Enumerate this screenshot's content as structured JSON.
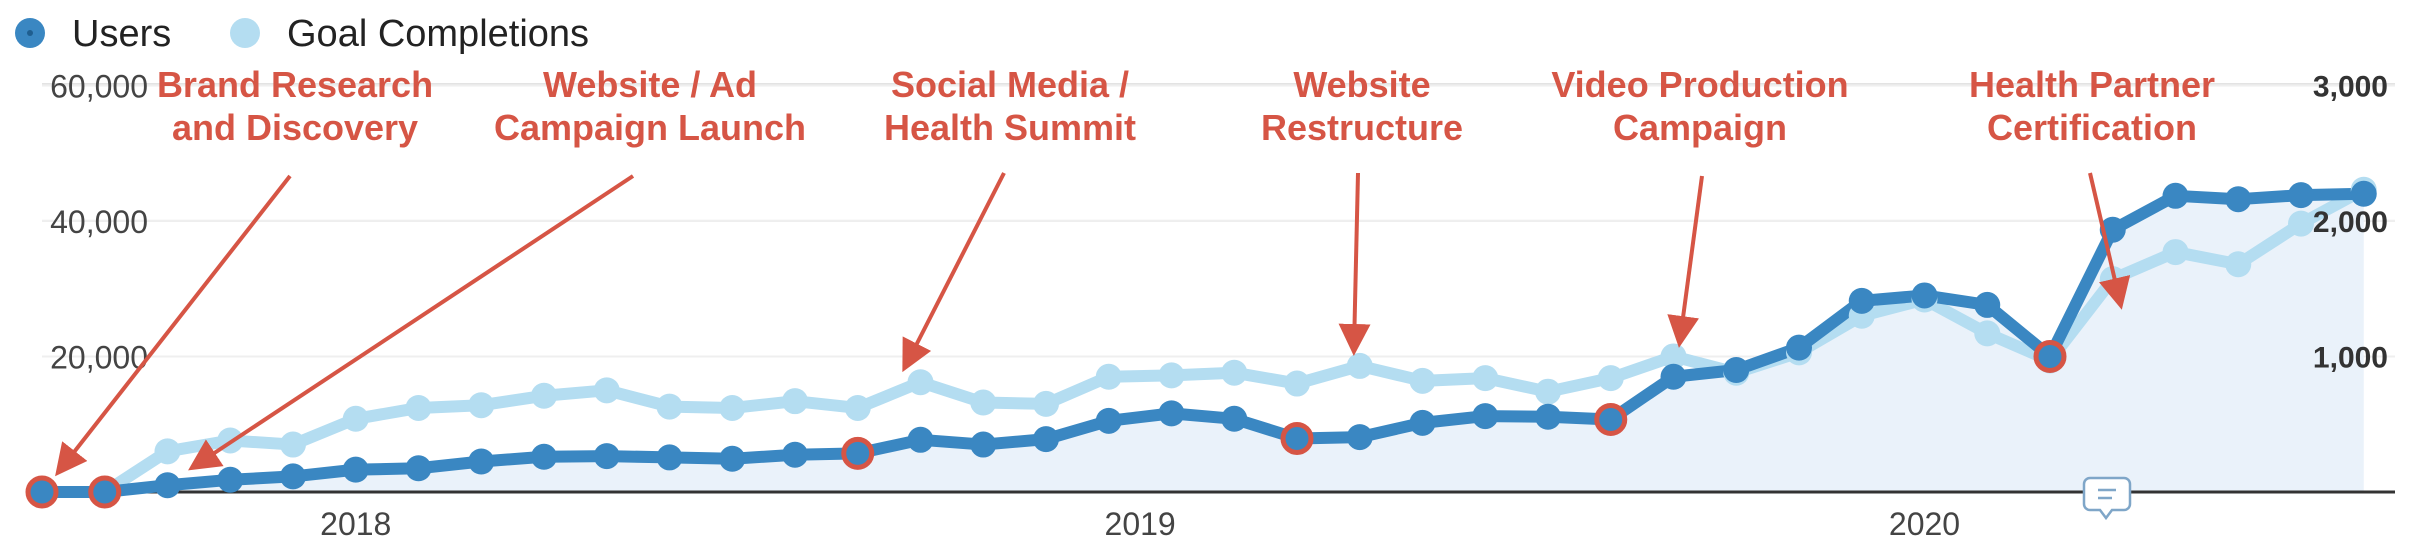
{
  "chart_data": {
    "type": "line",
    "legend": [
      {
        "name": "Users",
        "color": "#3a87c2"
      },
      {
        "name": "Goal Completions",
        "color": "#b4ddf1"
      }
    ],
    "y_left": {
      "ticks": [
        20000,
        40000,
        60000
      ],
      "tick_labels": [
        "20,000",
        "40,000",
        "60,000"
      ],
      "ylim": [
        0,
        63000
      ]
    },
    "y_right": {
      "ticks": [
        1000,
        2000,
        3000
      ],
      "tick_labels": [
        "1,000",
        "2,000",
        "3,000"
      ],
      "ylim": [
        0,
        3150
      ]
    },
    "x_tick_labels": [
      {
        "label": "2018",
        "index": 5
      },
      {
        "label": "2019",
        "index": 17.5
      },
      {
        "label": "2020",
        "index": 30
      }
    ],
    "point_count": 38,
    "series": [
      {
        "name": "Users",
        "axis": "left",
        "color": "#3a87c2",
        "values": [
          0,
          0,
          1000,
          1800,
          2300,
          3300,
          3500,
          4500,
          5200,
          5300,
          5100,
          4900,
          5500,
          5700,
          7700,
          7000,
          7800,
          10500,
          11600,
          10800,
          7900,
          8100,
          10200,
          11200,
          11100,
          10700,
          17000,
          18000,
          21300,
          28200,
          29000,
          27600,
          20000,
          38700,
          43700,
          43200,
          43800,
          44000
        ]
      },
      {
        "name": "Goal Completions",
        "axis": "right",
        "color": "#b4ddf1",
        "values": [
          0,
          0,
          300,
          380,
          350,
          540,
          620,
          640,
          710,
          750,
          630,
          620,
          670,
          620,
          810,
          660,
          650,
          850,
          860,
          880,
          800,
          930,
          820,
          840,
          740,
          840,
          1000,
          880,
          1030,
          1300,
          1420,
          1170,
          970,
          1570,
          1770,
          1680,
          1980,
          2230
        ]
      }
    ],
    "highlighted_points": [
      0,
      1,
      13,
      20,
      25,
      32
    ],
    "annotations": [
      {
        "lines": [
          "Brand Research",
          "and Discovery"
        ],
        "target_index": 0
      },
      {
        "lines": [
          "Website / Ad",
          "Campaign Launch"
        ],
        "target_index": 1
      },
      {
        "lines": [
          "Social Media /",
          "Health Summit"
        ],
        "target_index": 13
      },
      {
        "lines": [
          "Website",
          "Restructure"
        ],
        "target_index": 20
      },
      {
        "lines": [
          "Video Production",
          "Campaign"
        ],
        "target_index": 25
      },
      {
        "lines": [
          "Health Partner",
          "Certification"
        ],
        "target_index": 32
      }
    ],
    "annotation_color": "#d65545",
    "area_fill_color": "#eaf2fa"
  }
}
